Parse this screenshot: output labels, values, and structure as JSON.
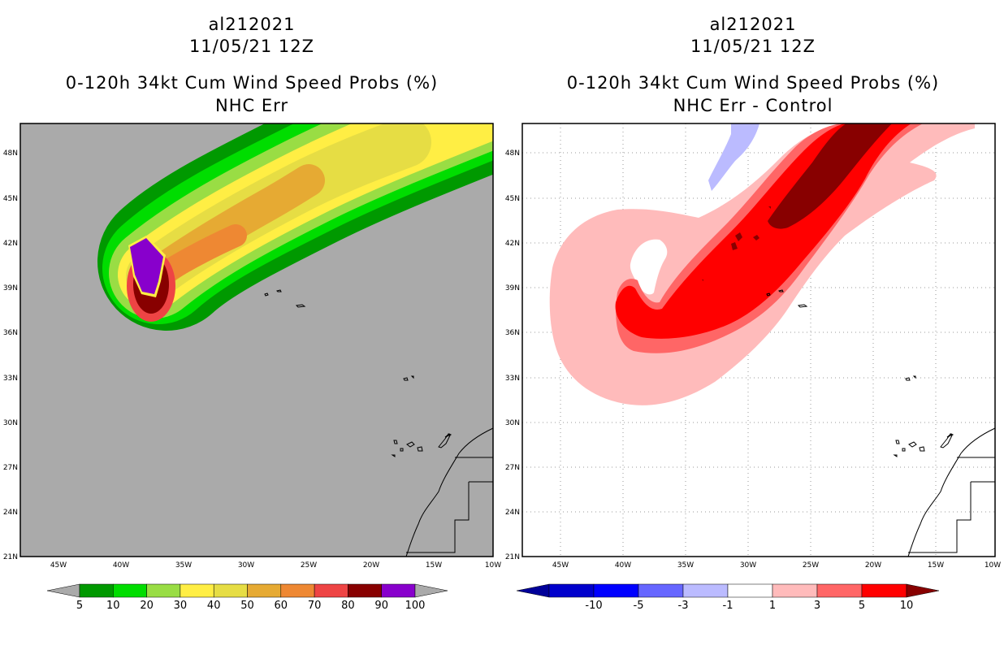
{
  "left_panel": {
    "title_line1": "al212021",
    "title_line2": "11/05/21 12Z",
    "title_line3": "0-120h 34kt Cum Wind Speed Probs (%)",
    "title_line4": "NHC Err",
    "colorbar": {
      "labels": [
        "5",
        "10",
        "20",
        "30",
        "40",
        "50",
        "60",
        "70",
        "80",
        "90",
        "100"
      ],
      "colors": [
        "#009900",
        "#00dd00",
        "#99dd44",
        "#ffee44",
        "#e6dd44",
        "#e6aa33",
        "#ee8833",
        "#ee4444",
        "#880000",
        "#8800cc"
      ],
      "end_color": "#aaaaaa"
    }
  },
  "right_panel": {
    "title_line1": "al212021",
    "title_line2": "11/05/21 12Z",
    "title_line3": "0-120h 34kt Cum Wind Speed Probs (%)",
    "title_line4": "NHC Err - Control",
    "colorbar": {
      "labels": [
        "-10",
        "-5",
        "-3",
        "-1",
        "1",
        "3",
        "5",
        "10"
      ],
      "colors": [
        "#0000cc",
        "#0000ff",
        "#6666ff",
        "#bbbbff",
        "#ffffff",
        "#ffbbbb",
        "#ff6666",
        "#ff0000"
      ],
      "low_end_color": "#000099",
      "high_end_color": "#880000"
    }
  },
  "map": {
    "lon_labels": [
      "45W",
      "40W",
      "35W",
      "30W",
      "25W",
      "20W",
      "15W",
      "10W"
    ],
    "lat_labels": [
      "48N",
      "45N",
      "42N",
      "39N",
      "36N",
      "33N",
      "30N",
      "27N",
      "24N",
      "21N"
    ],
    "background_color": "#aaaaaa"
  }
}
